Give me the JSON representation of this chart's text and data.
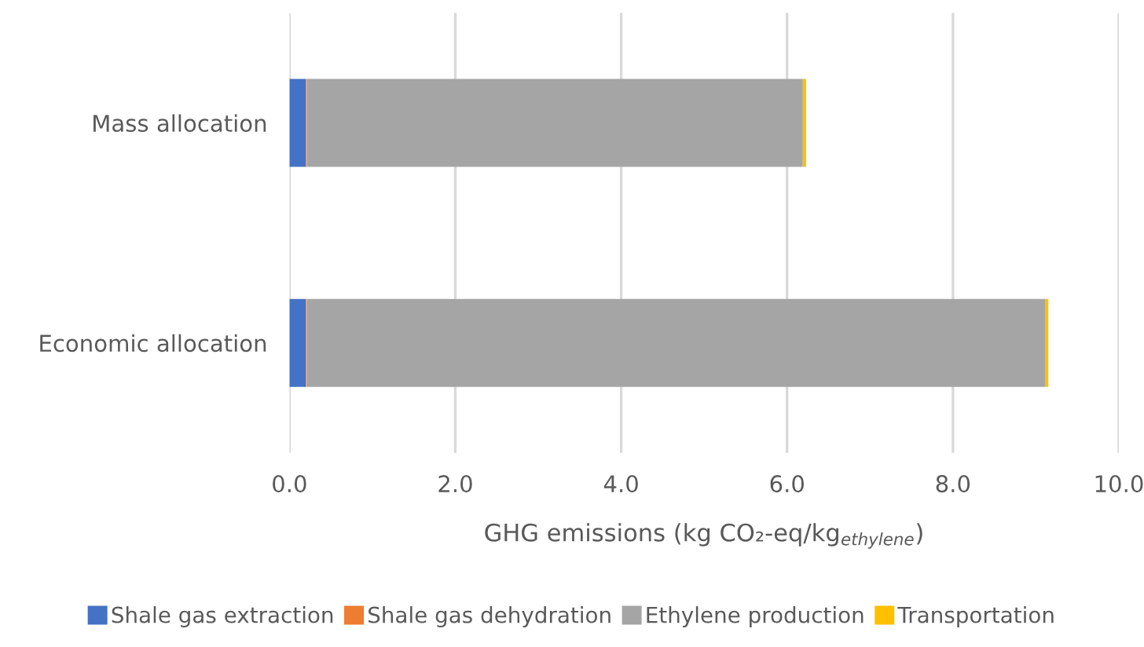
{
  "chart_data": {
    "type": "bar",
    "orientation": "horizontal",
    "stacked": true,
    "categories": [
      "Mass allocation",
      "Economic allocation"
    ],
    "series": [
      {
        "name": "Shale gas extraction",
        "color": "#4472c4",
        "values": [
          0.2,
          0.2
        ]
      },
      {
        "name": "Shale gas dehydration",
        "color": "#ed7d31",
        "values": [
          0.01,
          0.01
        ]
      },
      {
        "name": "Ethylene production",
        "color": "#a5a5a5",
        "values": [
          5.98,
          8.9
        ]
      },
      {
        "name": "Transportation",
        "color": "#ffc000",
        "values": [
          0.04,
          0.04
        ]
      }
    ],
    "xlabel": "GHG emissions (kg CO₂-eq/kg$_{ethylene}$)",
    "xlim": [
      0,
      10
    ],
    "xticks": [
      {
        "value": 0,
        "label": "0.0"
      },
      {
        "value": 2,
        "label": "2.0"
      },
      {
        "value": 4,
        "label": "4.0"
      },
      {
        "value": 6,
        "label": "6.0"
      },
      {
        "value": 8,
        "label": "8.0"
      },
      {
        "value": 10,
        "label": "10.0"
      }
    ],
    "grid": "x",
    "legend": "bottom"
  }
}
